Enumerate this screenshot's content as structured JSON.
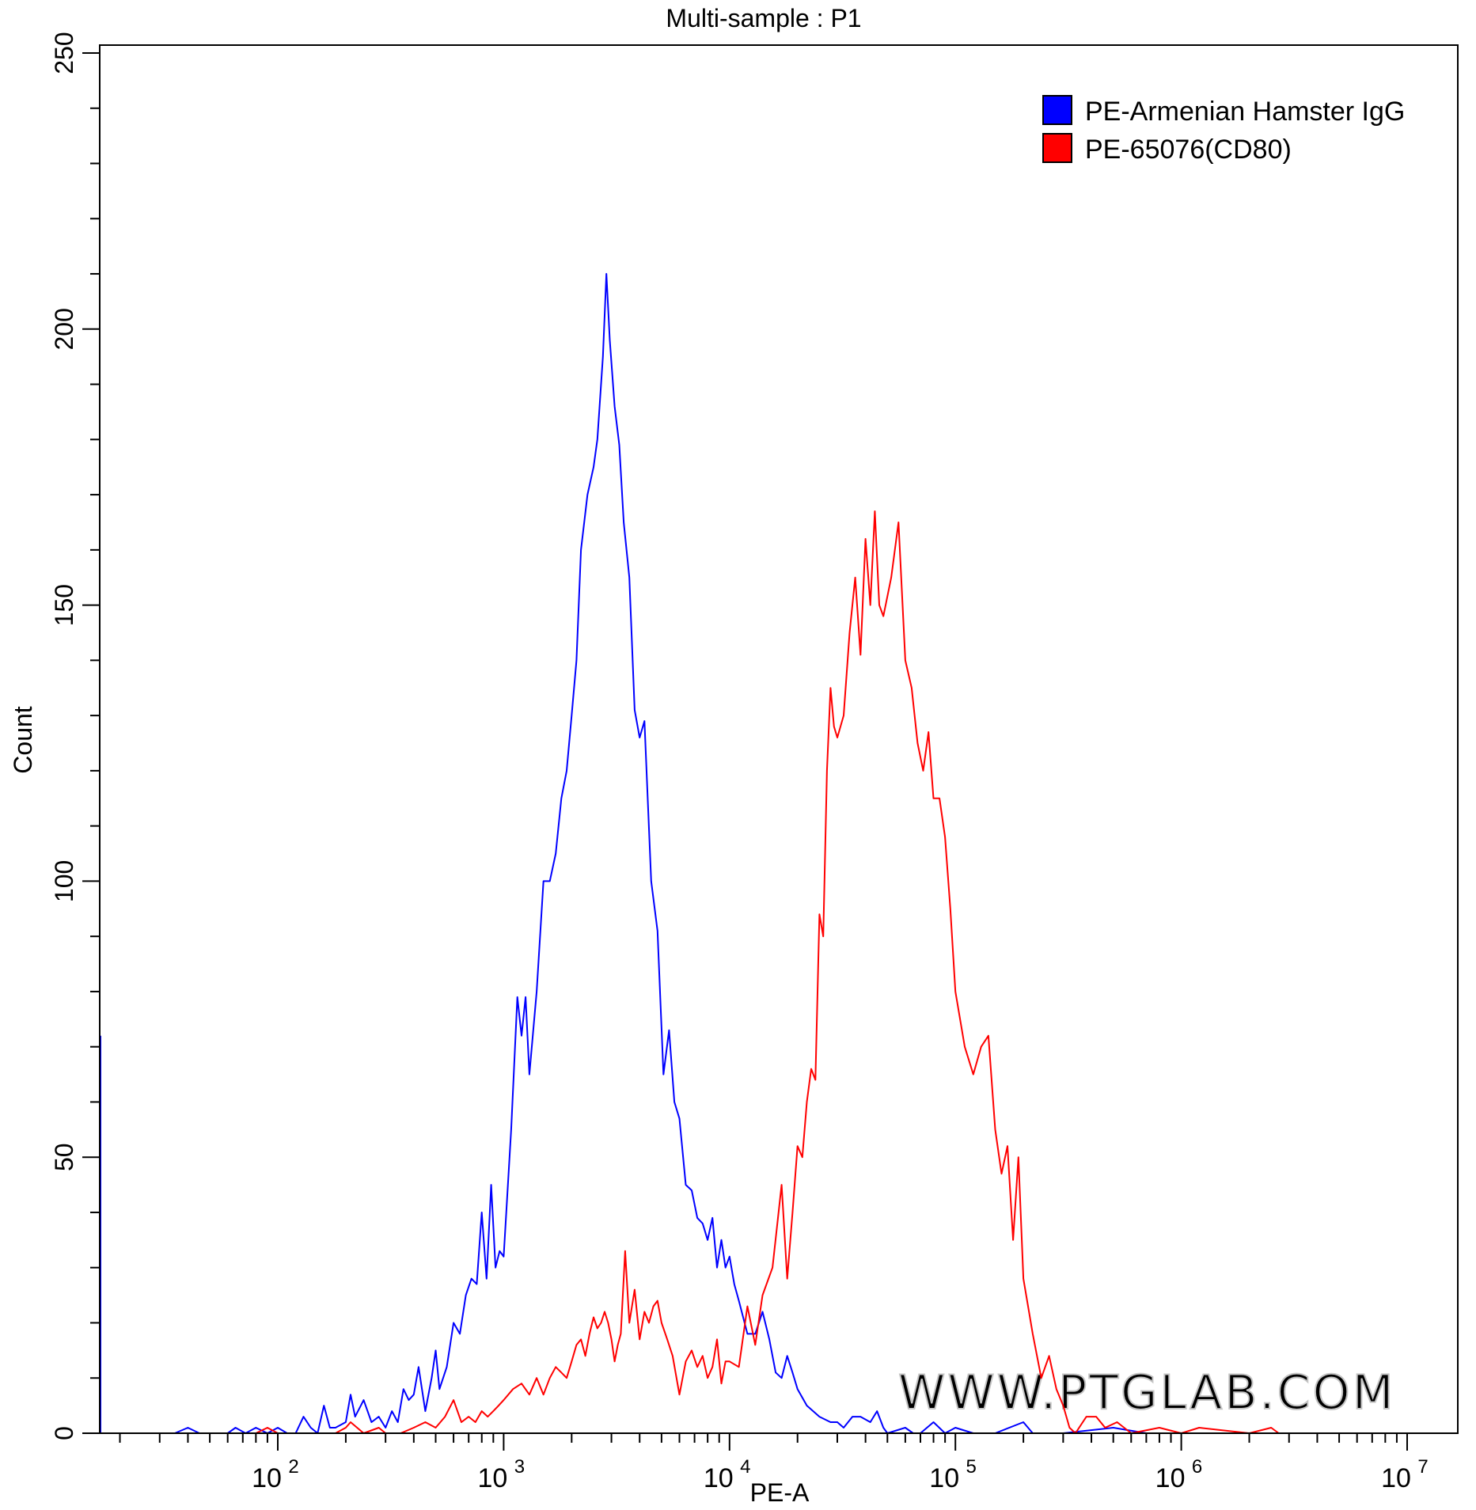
{
  "chart_data": {
    "type": "line",
    "title": "Multi-sample : P1",
    "xlabel": "PE-A",
    "ylabel": "Count",
    "x_scale": "log",
    "xlim": [
      12,
      12000000
    ],
    "ylim": [
      0,
      250
    ],
    "x_ticks": [
      {
        "base": "10",
        "exp": "2",
        "value": 100
      },
      {
        "base": "10",
        "exp": "3",
        "value": 1000
      },
      {
        "base": "10",
        "exp": "4",
        "value": 10000
      },
      {
        "base": "10",
        "exp": "5",
        "value": 100000
      },
      {
        "base": "10",
        "exp": "6",
        "value": 1000000
      },
      {
        "base": "10",
        "exp": "7",
        "value": 10000000
      }
    ],
    "y_ticks": [
      "0",
      "50",
      "100",
      "150",
      "200",
      "250"
    ],
    "grid": false,
    "legend_position": "top-right",
    "watermark": "WWW.PTGLAB.COM",
    "series": [
      {
        "name": "PE-Armenian Hamster IgG",
        "color": "#0000ff",
        "points": [
          [
            12,
            72
          ],
          [
            12.3,
            0
          ],
          [
            35,
            0
          ],
          [
            40,
            1
          ],
          [
            45,
            0
          ],
          [
            60,
            0
          ],
          [
            65,
            1
          ],
          [
            72,
            0
          ],
          [
            80,
            1
          ],
          [
            90,
            0
          ],
          [
            100,
            1
          ],
          [
            110,
            0
          ],
          [
            120,
            0
          ],
          [
            130,
            3
          ],
          [
            140,
            1
          ],
          [
            150,
            0
          ],
          [
            160,
            5
          ],
          [
            170,
            1
          ],
          [
            180,
            1
          ],
          [
            200,
            2
          ],
          [
            210,
            7
          ],
          [
            220,
            3
          ],
          [
            240,
            6
          ],
          [
            260,
            2
          ],
          [
            280,
            3
          ],
          [
            300,
            1
          ],
          [
            320,
            4
          ],
          [
            340,
            2
          ],
          [
            360,
            8
          ],
          [
            380,
            6
          ],
          [
            400,
            7
          ],
          [
            420,
            12
          ],
          [
            450,
            4
          ],
          [
            480,
            10
          ],
          [
            500,
            15
          ],
          [
            520,
            8
          ],
          [
            560,
            12
          ],
          [
            600,
            20
          ],
          [
            640,
            18
          ],
          [
            680,
            25
          ],
          [
            720,
            28
          ],
          [
            760,
            27
          ],
          [
            800,
            40
          ],
          [
            840,
            28
          ],
          [
            880,
            45
          ],
          [
            920,
            30
          ],
          [
            960,
            33
          ],
          [
            1000,
            32
          ],
          [
            1080,
            55
          ],
          [
            1150,
            79
          ],
          [
            1200,
            72
          ],
          [
            1250,
            79
          ],
          [
            1300,
            65
          ],
          [
            1400,
            80
          ],
          [
            1500,
            100
          ],
          [
            1600,
            100
          ],
          [
            1700,
            105
          ],
          [
            1800,
            115
          ],
          [
            1900,
            120
          ],
          [
            2000,
            130
          ],
          [
            2100,
            140
          ],
          [
            2200,
            160
          ],
          [
            2350,
            170
          ],
          [
            2500,
            175
          ],
          [
            2600,
            180
          ],
          [
            2750,
            195
          ],
          [
            2850,
            210
          ],
          [
            2950,
            198
          ],
          [
            3100,
            186
          ],
          [
            3250,
            179
          ],
          [
            3400,
            165
          ],
          [
            3600,
            155
          ],
          [
            3800,
            131
          ],
          [
            4000,
            126
          ],
          [
            4200,
            129
          ],
          [
            4500,
            100
          ],
          [
            4800,
            91
          ],
          [
            5100,
            65
          ],
          [
            5400,
            73
          ],
          [
            5700,
            60
          ],
          [
            6000,
            57
          ],
          [
            6400,
            45
          ],
          [
            6800,
            44
          ],
          [
            7200,
            39
          ],
          [
            7600,
            38
          ],
          [
            8000,
            35
          ],
          [
            8400,
            39
          ],
          [
            8800,
            30
          ],
          [
            9200,
            35
          ],
          [
            9600,
            30
          ],
          [
            10000,
            32
          ],
          [
            10500,
            27
          ],
          [
            11000,
            24
          ],
          [
            12000,
            18
          ],
          [
            13000,
            18
          ],
          [
            14000,
            22
          ],
          [
            15000,
            17
          ],
          [
            16000,
            11
          ],
          [
            17000,
            10
          ],
          [
            18000,
            14
          ],
          [
            19000,
            11
          ],
          [
            20000,
            8
          ],
          [
            22000,
            5
          ],
          [
            25000,
            3
          ],
          [
            28000,
            2
          ],
          [
            30000,
            2
          ],
          [
            32000,
            1
          ],
          [
            35000,
            3
          ],
          [
            38000,
            3
          ],
          [
            42000,
            2
          ],
          [
            45000,
            4
          ],
          [
            48000,
            1
          ],
          [
            50000,
            0
          ],
          [
            60000,
            1
          ],
          [
            65000,
            0
          ],
          [
            70000,
            0
          ],
          [
            80000,
            2
          ],
          [
            90000,
            0
          ],
          [
            100000,
            1
          ],
          [
            120000,
            0
          ],
          [
            150000,
            0
          ],
          [
            200000,
            2
          ],
          [
            220000,
            0
          ],
          [
            300000,
            0
          ],
          [
            500000,
            1
          ],
          [
            700000,
            0
          ],
          [
            1500000,
            0
          ],
          [
            2000000,
            0
          ],
          [
            3000000,
            0
          ],
          [
            3600000,
            0
          ]
        ]
      },
      {
        "name": "PE-65076(CD80)",
        "color": "#ff0000",
        "points": [
          [
            14,
            0
          ],
          [
            15,
            0
          ],
          [
            40,
            0
          ],
          [
            60,
            0
          ],
          [
            80,
            0
          ],
          [
            90,
            1
          ],
          [
            100,
            0
          ],
          [
            150,
            0
          ],
          [
            180,
            0
          ],
          [
            200,
            1
          ],
          [
            210,
            2
          ],
          [
            240,
            0
          ],
          [
            280,
            1
          ],
          [
            300,
            0
          ],
          [
            350,
            0
          ],
          [
            400,
            1
          ],
          [
            450,
            2
          ],
          [
            500,
            1
          ],
          [
            550,
            3
          ],
          [
            600,
            6
          ],
          [
            650,
            2
          ],
          [
            700,
            3
          ],
          [
            750,
            2
          ],
          [
            800,
            4
          ],
          [
            850,
            3
          ],
          [
            900,
            4
          ],
          [
            950,
            5
          ],
          [
            1000,
            6
          ],
          [
            1100,
            8
          ],
          [
            1200,
            9
          ],
          [
            1300,
            7
          ],
          [
            1400,
            10
          ],
          [
            1500,
            7
          ],
          [
            1600,
            10
          ],
          [
            1700,
            12
          ],
          [
            1800,
            11
          ],
          [
            1900,
            10
          ],
          [
            2000,
            13
          ],
          [
            2100,
            16
          ],
          [
            2200,
            17
          ],
          [
            2300,
            14
          ],
          [
            2400,
            18
          ],
          [
            2500,
            21
          ],
          [
            2600,
            19
          ],
          [
            2700,
            20
          ],
          [
            2800,
            22
          ],
          [
            2900,
            20
          ],
          [
            3000,
            17
          ],
          [
            3100,
            13
          ],
          [
            3200,
            16
          ],
          [
            3300,
            18
          ],
          [
            3450,
            33
          ],
          [
            3600,
            20
          ],
          [
            3800,
            26
          ],
          [
            4000,
            17
          ],
          [
            4200,
            22
          ],
          [
            4400,
            20
          ],
          [
            4600,
            23
          ],
          [
            4800,
            24
          ],
          [
            5000,
            20
          ],
          [
            5300,
            17
          ],
          [
            5600,
            14
          ],
          [
            6000,
            7
          ],
          [
            6400,
            13
          ],
          [
            6800,
            15
          ],
          [
            7200,
            12
          ],
          [
            7600,
            14
          ],
          [
            8000,
            10
          ],
          [
            8400,
            12
          ],
          [
            8800,
            17
          ],
          [
            9200,
            9
          ],
          [
            9600,
            13
          ],
          [
            10000,
            13
          ],
          [
            11000,
            12
          ],
          [
            12000,
            23
          ],
          [
            13000,
            16
          ],
          [
            14000,
            25
          ],
          [
            15500,
            30
          ],
          [
            17000,
            45
          ],
          [
            18000,
            28
          ],
          [
            19000,
            40
          ],
          [
            20000,
            52
          ],
          [
            21000,
            50
          ],
          [
            22000,
            60
          ],
          [
            23000,
            66
          ],
          [
            24000,
            64
          ],
          [
            25000,
            94
          ],
          [
            26000,
            90
          ],
          [
            27000,
            120
          ],
          [
            28000,
            135
          ],
          [
            29000,
            128
          ],
          [
            30000,
            126
          ],
          [
            32000,
            130
          ],
          [
            34000,
            145
          ],
          [
            36000,
            155
          ],
          [
            38000,
            141
          ],
          [
            40000,
            162
          ],
          [
            42000,
            150
          ],
          [
            44000,
            167
          ],
          [
            46000,
            150
          ],
          [
            48000,
            148
          ],
          [
            52000,
            155
          ],
          [
            56000,
            165
          ],
          [
            60000,
            140
          ],
          [
            64000,
            135
          ],
          [
            68000,
            125
          ],
          [
            72000,
            120
          ],
          [
            76000,
            127
          ],
          [
            80000,
            115
          ],
          [
            85000,
            115
          ],
          [
            90000,
            108
          ],
          [
            95000,
            95
          ],
          [
            100000,
            80
          ],
          [
            110000,
            70
          ],
          [
            120000,
            65
          ],
          [
            130000,
            70
          ],
          [
            140000,
            72
          ],
          [
            150000,
            55
          ],
          [
            160000,
            47
          ],
          [
            170000,
            52
          ],
          [
            180000,
            35
          ],
          [
            190000,
            50
          ],
          [
            200000,
            28
          ],
          [
            220000,
            18
          ],
          [
            240000,
            10
          ],
          [
            260000,
            14
          ],
          [
            280000,
            8
          ],
          [
            300000,
            5
          ],
          [
            320000,
            1
          ],
          [
            340000,
            0
          ],
          [
            380000,
            3
          ],
          [
            420000,
            3
          ],
          [
            460000,
            1
          ],
          [
            520000,
            2
          ],
          [
            600000,
            0
          ],
          [
            800000,
            1
          ],
          [
            1000000,
            0
          ],
          [
            1200000,
            1
          ],
          [
            2000000,
            0
          ],
          [
            2500000,
            1
          ],
          [
            2700000,
            0
          ]
        ]
      }
    ]
  }
}
